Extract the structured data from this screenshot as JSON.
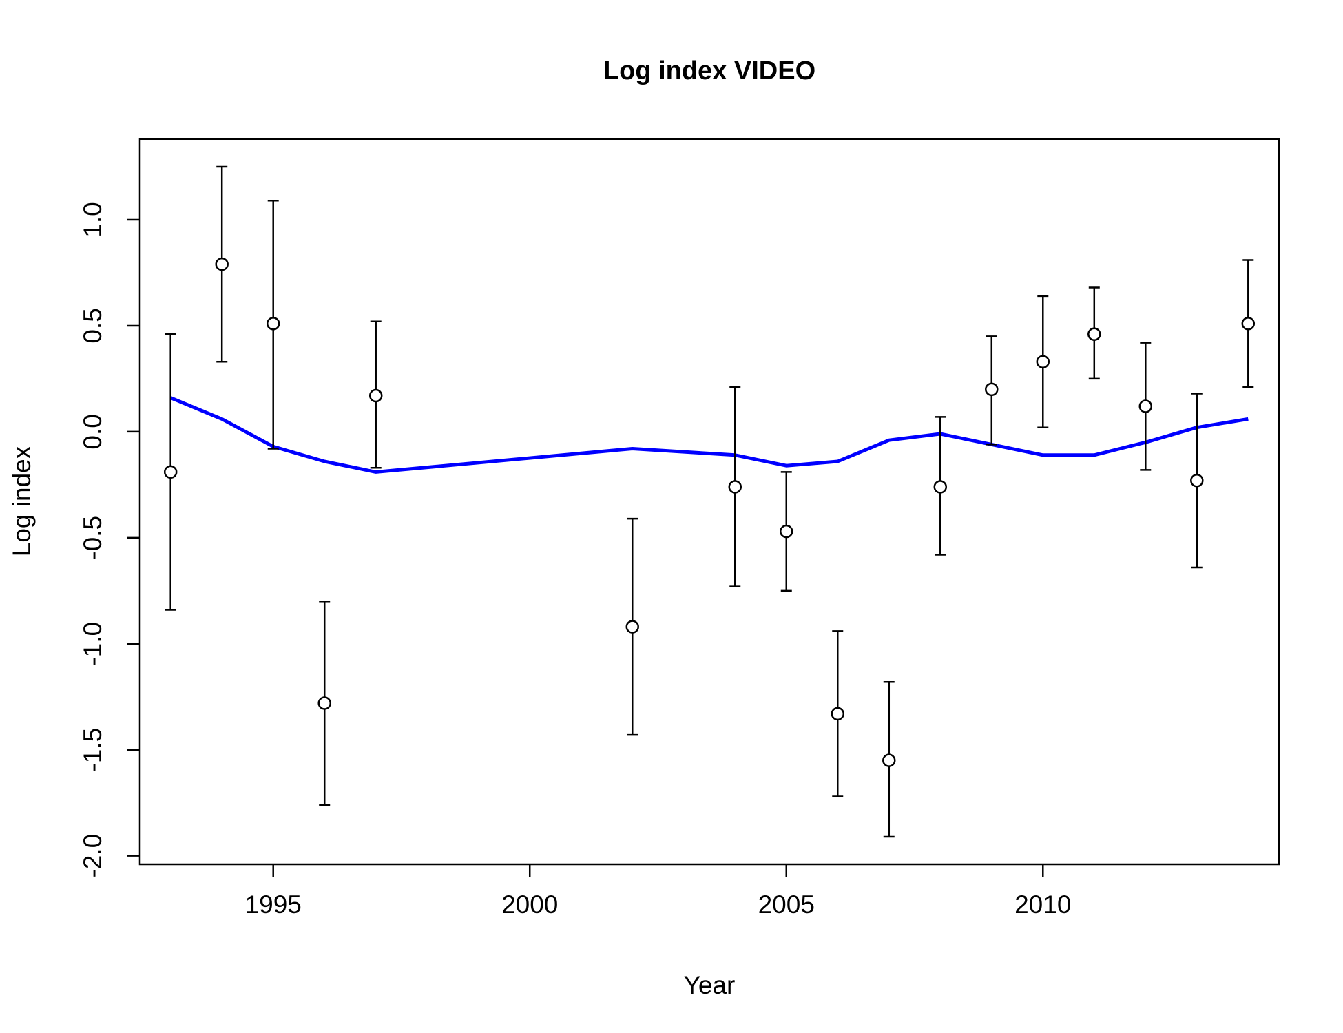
{
  "chart_data": {
    "type": "scatter",
    "title": "Log index VIDEO",
    "xlabel": "Year",
    "ylabel": "Log index",
    "xlim": [
      1992.4,
      2014.6
    ],
    "ylim": [
      -2.04,
      1.38
    ],
    "x_ticks": [
      1995,
      2000,
      2005,
      2010
    ],
    "x_tick_labels": [
      "1995",
      "2000",
      "2005",
      "2010"
    ],
    "y_ticks": [
      -2.0,
      -1.5,
      -1.0,
      -0.5,
      0.0,
      0.5,
      1.0
    ],
    "y_tick_labels": [
      "-2.0",
      "-1.5",
      "-1.0",
      "-0.5",
      "0.0",
      "0.5",
      "1.0"
    ],
    "grid": false,
    "legend": "none",
    "colors": {
      "points": "#000000",
      "fit_line": "#0000ff",
      "background": "#ffffff"
    },
    "series": [
      {
        "kind": "points-with-error-bars",
        "points": [
          {
            "x": 1993,
            "y": -0.19,
            "lower": -0.84,
            "upper": 0.46
          },
          {
            "x": 1994,
            "y": 0.79,
            "lower": 0.33,
            "upper": 1.25
          },
          {
            "x": 1995,
            "y": 0.51,
            "lower": -0.08,
            "upper": 1.09
          },
          {
            "x": 1996,
            "y": -1.28,
            "lower": -1.76,
            "upper": -0.8
          },
          {
            "x": 1997,
            "y": 0.17,
            "lower": -0.17,
            "upper": 0.52
          },
          {
            "x": 2002,
            "y": -0.92,
            "lower": -1.43,
            "upper": -0.41
          },
          {
            "x": 2004,
            "y": -0.26,
            "lower": -0.73,
            "upper": 0.21
          },
          {
            "x": 2005,
            "y": -0.47,
            "lower": -0.75,
            "upper": -0.19
          },
          {
            "x": 2006,
            "y": -1.33,
            "lower": -1.72,
            "upper": -0.94
          },
          {
            "x": 2007,
            "y": -1.55,
            "lower": -1.91,
            "upper": -1.18
          },
          {
            "x": 2008,
            "y": -0.26,
            "lower": -0.58,
            "upper": 0.07
          },
          {
            "x": 2009,
            "y": 0.2,
            "lower": -0.06,
            "upper": 0.45
          },
          {
            "x": 2010,
            "y": 0.33,
            "lower": 0.02,
            "upper": 0.64
          },
          {
            "x": 2011,
            "y": 0.46,
            "lower": 0.25,
            "upper": 0.68
          },
          {
            "x": 2012,
            "y": 0.12,
            "lower": -0.18,
            "upper": 0.42
          },
          {
            "x": 2013,
            "y": -0.23,
            "lower": -0.64,
            "upper": 0.18
          },
          {
            "x": 2014,
            "y": 0.51,
            "lower": 0.21,
            "upper": 0.81
          }
        ]
      },
      {
        "kind": "line",
        "x": [
          1993,
          1994,
          1995,
          1996,
          1997,
          2002,
          2004,
          2005,
          2006,
          2007,
          2008,
          2009,
          2010,
          2011,
          2012,
          2013,
          2014
        ],
        "y": [
          0.16,
          0.06,
          -0.07,
          -0.14,
          -0.19,
          -0.08,
          -0.11,
          -0.16,
          -0.14,
          -0.04,
          -0.01,
          -0.06,
          -0.11,
          -0.11,
          -0.05,
          0.02,
          0.06
        ]
      }
    ]
  }
}
